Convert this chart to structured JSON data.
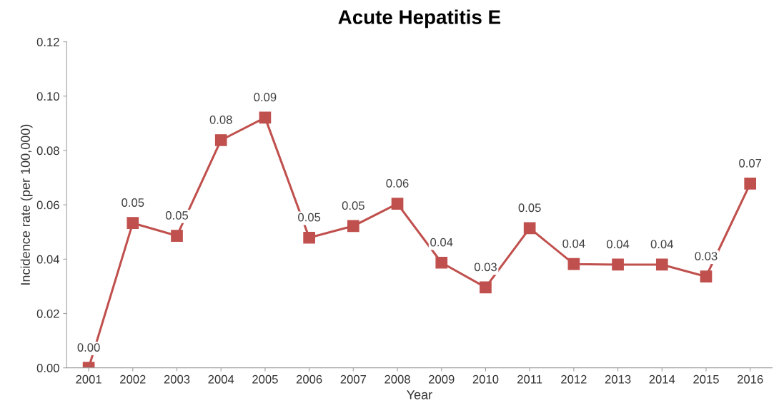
{
  "chart_data": {
    "type": "line",
    "title": "Acute Hepatitis E",
    "xlabel": "Year",
    "ylabel": "Incidence rate (per 100,000)",
    "categories": [
      "2001",
      "2002",
      "2003",
      "2004",
      "2005",
      "2006",
      "2007",
      "2008",
      "2009",
      "2010",
      "2011",
      "2012",
      "2013",
      "2014",
      "2015",
      "2016"
    ],
    "series": [
      {
        "color": "#c0504d",
        "values": [
          0.0,
          0.0533,
          0.0486,
          0.0838,
          0.0921,
          0.0479,
          0.0522,
          0.0604,
          0.0387,
          0.0296,
          0.0514,
          0.0382,
          0.038,
          0.038,
          0.0336,
          0.0678
        ],
        "value_labels": [
          "0.00",
          "0.05",
          "0.05",
          "0.08",
          "0.09",
          "0.05",
          "0.05",
          "0.06",
          "0.04",
          "0.03",
          "0.05",
          "0.04",
          "0.04",
          "0.04",
          "0.03",
          "0.07"
        ]
      }
    ],
    "ylim": [
      0,
      0.12
    ],
    "yticks": [
      "0.00",
      "0.02",
      "0.04",
      "0.06",
      "0.08",
      "0.10",
      "0.12"
    ],
    "marker": "square",
    "line_style": "solid",
    "grid": false
  }
}
